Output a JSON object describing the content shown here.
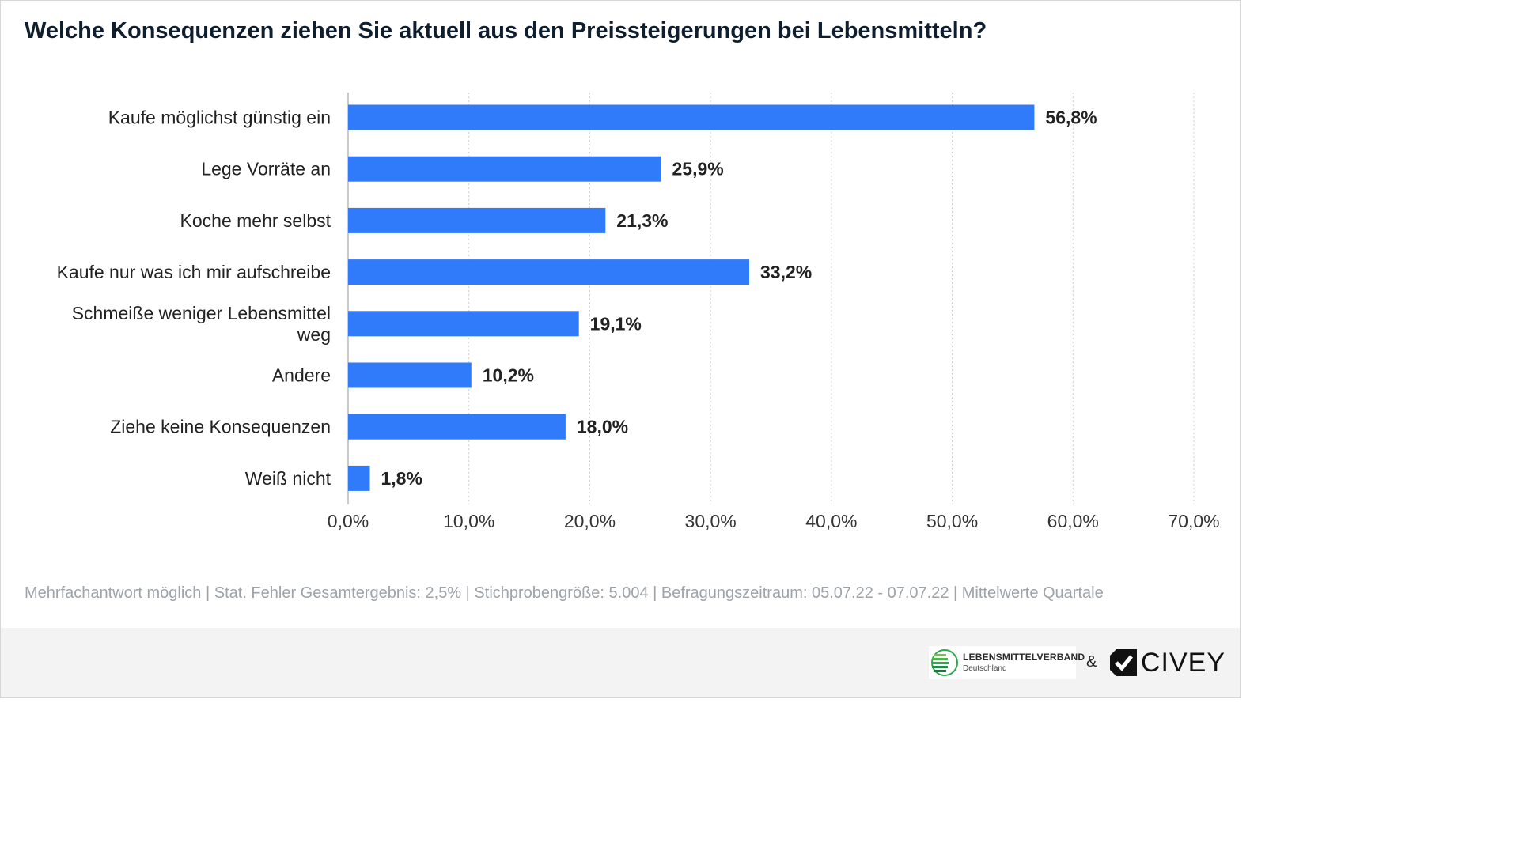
{
  "chart_data": {
    "type": "bar",
    "orientation": "horizontal",
    "title": "Welche Konsequenzen ziehen Sie aktuell aus den Preissteigerungen bei Lebensmitteln?",
    "categories": [
      [
        "Kaufe möglichst günstig ein"
      ],
      [
        "Lege Vorräte an"
      ],
      [
        "Koche mehr selbst"
      ],
      [
        "Kaufe nur was ich mir aufschreibe"
      ],
      [
        "Schmeiße weniger Lebensmittel",
        "weg"
      ],
      [
        "Andere"
      ],
      [
        "Ziehe keine Konsequenzen"
      ],
      [
        "Weiß nicht"
      ]
    ],
    "values": [
      56.8,
      25.9,
      21.3,
      33.2,
      19.1,
      10.2,
      18.0,
      1.8
    ],
    "value_labels": [
      "56,8%",
      "25,9%",
      "21,3%",
      "33,2%",
      "19,1%",
      "10,2%",
      "18,0%",
      "1,8%"
    ],
    "xlim": [
      0,
      70
    ],
    "x_ticks": [
      0,
      10,
      20,
      30,
      40,
      50,
      60,
      70
    ],
    "x_tick_labels": [
      "0,0%",
      "10,0%",
      "20,0%",
      "30,0%",
      "40,0%",
      "50,0%",
      "60,0%",
      "70,0%"
    ],
    "grid": "vertical-dotted",
    "legend": "none",
    "bar_color": "#2f7bfa"
  },
  "footnote": "Mehrfachantwort möglich | Stat. Fehler Gesamtergebnis: 2,5% | Stichprobengröße: 5.004 | Befragungszeitraum: 05.07.22 - 07.07.22 | Mittelwerte Quartale",
  "footer": {
    "lmv_name": "LEBENSMITTELVERBAND",
    "lmv_sub": "Deutschland",
    "amp": "&",
    "civey_name": "CIVEY",
    "lmv_icon": "lebensmittelverband-logo-icon",
    "civey_icon": "civey-logo-icon"
  }
}
